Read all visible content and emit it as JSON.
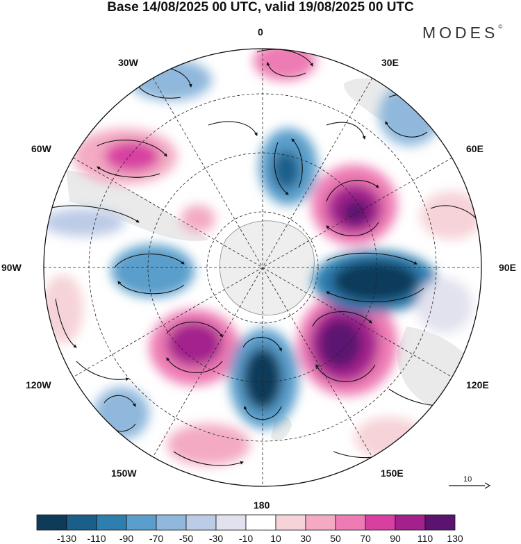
{
  "title": "Base 14/08/2025 00 UTC, valid 19/08/2025 00 UTC",
  "brand": {
    "name": "MODES",
    "mark": "©"
  },
  "longitude_labels": {
    "lon_0": "0",
    "lon_30e": "30E",
    "lon_60e": "60E",
    "lon_90e": "90E",
    "lon_120e": "120E",
    "lon_150e": "150E",
    "lon_180": "180",
    "lon_150w": "150W",
    "lon_120w": "120W",
    "lon_90w": "90W",
    "lon_60w": "60W",
    "lon_30w": "30W"
  },
  "vector_reference": {
    "label": "10"
  },
  "colorbar": {
    "tick_labels": [
      "-130",
      "-110",
      "-90",
      "-70",
      "-50",
      "-30",
      "-10",
      "10",
      "30",
      "50",
      "70",
      "90",
      "110",
      "130"
    ],
    "colors": [
      "#0f3b5a",
      "#1a5f8a",
      "#2f7eb0",
      "#5a9ecb",
      "#8fb8dc",
      "#bccbe6",
      "#e2e2ef",
      "#ffffff",
      "#f6d3d8",
      "#f3aac2",
      "#ee7bb4",
      "#d83fa1",
      "#a3208d",
      "#5a1470"
    ]
  },
  "legend_colors": {
    "land": "#d9d9d9",
    "antarctica": "#eeeeee",
    "outline": "#222222"
  }
}
